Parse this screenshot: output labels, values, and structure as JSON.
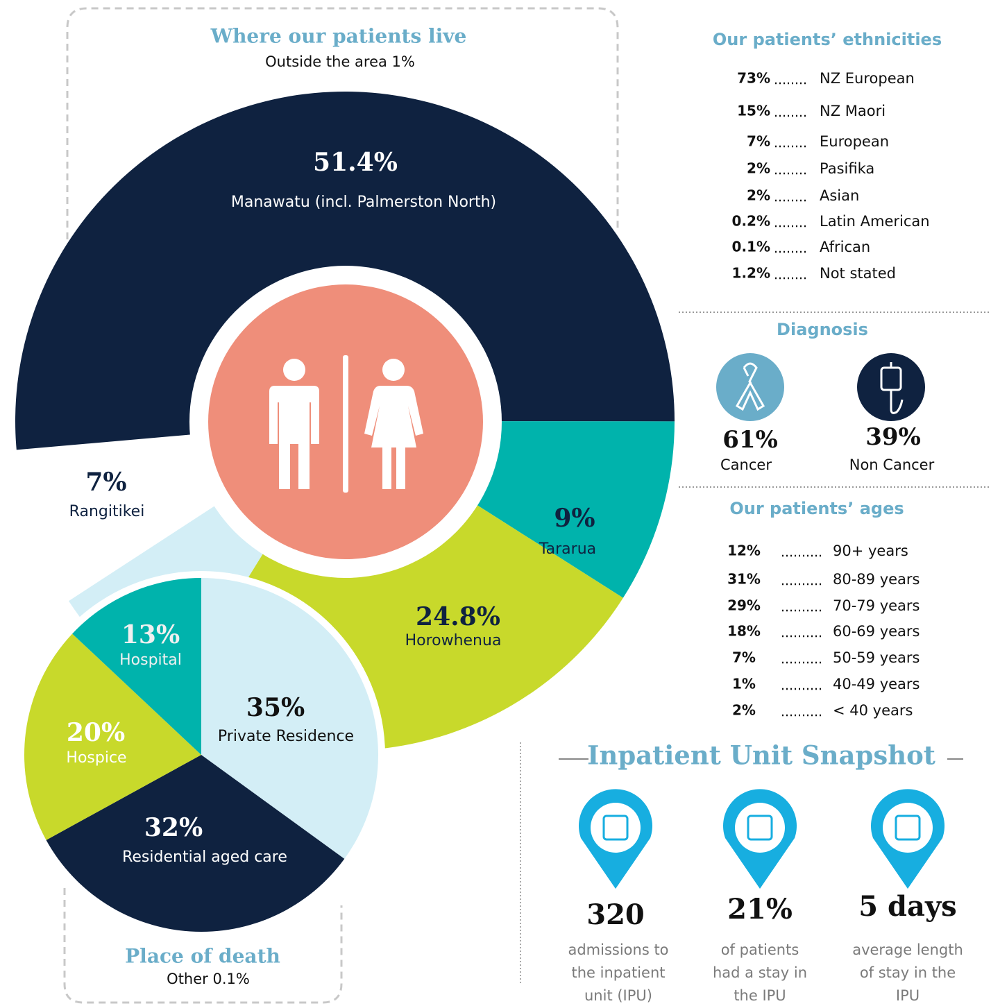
{
  "residence": {
    "type": "donut",
    "title": "Where  our patients live",
    "subtitle": "Outside the area 1%",
    "categories": [
      "Manawatu (incl. Palmerston North)",
      "Tararua",
      "Horowhenua",
      "Rangitikei"
    ],
    "values": [
      51.4,
      9,
      24.8,
      7
    ],
    "value_labels": [
      "51.4%",
      "9%",
      "24.8%",
      "7%"
    ],
    "colors": [
      "#0f2240",
      "#00b3ac",
      "#c8d92b",
      "#d3eef6"
    ]
  },
  "place_of_death": {
    "type": "pie",
    "title": "Place of death",
    "subtitle": "Other 0.1%",
    "categories": [
      "Private Residence",
      "Residential aged care",
      "Hospice",
      "Hospital"
    ],
    "values": [
      35,
      32,
      20,
      13
    ],
    "value_labels": [
      "35%",
      "32%",
      "20%",
      "13%"
    ],
    "colors": [
      "#d3eef6",
      "#0f2240",
      "#c8d92b",
      "#00b3ac"
    ]
  },
  "ethnicities": {
    "title": "Our patients’ ethnicities",
    "rows": [
      {
        "value": "73%",
        "label": "NZ European"
      },
      {
        "value": "15%",
        "label": "NZ Maori"
      },
      {
        "value": "7%",
        "label": "European"
      },
      {
        "value": "2%",
        "label": "Pasifika"
      },
      {
        "value": "2%",
        "label": "Asian"
      },
      {
        "value": "0.2%",
        "label": "Latin American"
      },
      {
        "value": "0.1%",
        "label": "African"
      },
      {
        "value": "1.2%",
        "label": "Not stated"
      }
    ]
  },
  "diagnosis": {
    "title": "Diagnosis",
    "items": [
      {
        "value": "61%",
        "label": "Cancer"
      },
      {
        "value": "39%",
        "label": "Non Cancer"
      }
    ]
  },
  "ages": {
    "title": "Our patients’ ages",
    "rows": [
      {
        "value": "12%",
        "label": "90+ years"
      },
      {
        "value": "31%",
        "label": "80-89 years"
      },
      {
        "value": "29%",
        "label": "70-79 years"
      },
      {
        "value": "18%",
        "label": "60-69 years"
      },
      {
        "value": "7%",
        "label": "50-59 years"
      },
      {
        "value": "1%",
        "label": "40-49 years"
      },
      {
        "value": "2%",
        "label": "< 40 years"
      }
    ]
  },
  "snapshot": {
    "title": "Inpatient  Unit Snapshot",
    "items": [
      {
        "value": "320",
        "lines": [
          "admissions to",
          "the inpatient",
          "unit (IPU)"
        ]
      },
      {
        "value": "21%",
        "lines": [
          "of patients",
          "had a stay in",
          "the IPU"
        ]
      },
      {
        "value": "5 days",
        "lines": [
          "average length",
          "of  stay in the",
          "IPU"
        ]
      }
    ]
  }
}
